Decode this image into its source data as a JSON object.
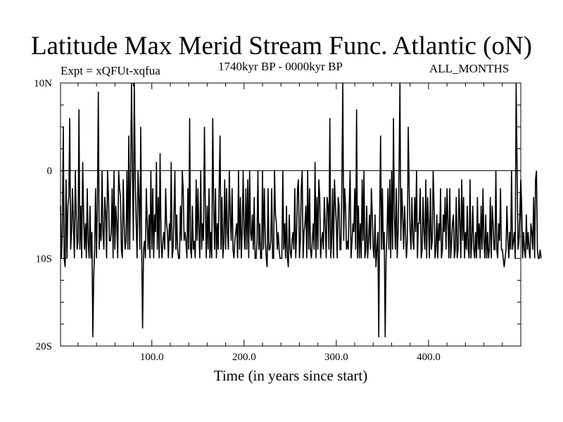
{
  "header": {
    "title": "Latitude Max Merid Stream Func. Atlantic (oN)",
    "expt": "Expt = xQFUt-xqfua",
    "period": "1740kyr BP - 0000kyr BP",
    "months": "ALL_MONTHS"
  },
  "chart_data": {
    "type": "line",
    "title": "Latitude Max Merid Stream Func. Atlantic (oN)",
    "xlabel": "Time (in years since start)",
    "ylabel": "",
    "xlim": [
      1,
      500
    ],
    "ylim": [
      -20,
      10
    ],
    "x_ticks": [
      100,
      200,
      300,
      400
    ],
    "x_tick_labels": [
      "100.0",
      "200.0",
      "300.0",
      "400.0"
    ],
    "y_ticks": [
      -20,
      -10,
      0,
      10
    ],
    "y_tick_labels": [
      "20S",
      "10S",
      "0",
      "10N"
    ],
    "zero_line": true,
    "grid": false,
    "series": [
      {
        "x_start": 1,
        "x_step": 1,
        "values": [
          -4,
          -10,
          -7,
          5,
          -10,
          -11,
          -1,
          -10,
          -4,
          -3,
          6,
          -9,
          -7,
          -2,
          -6,
          -10,
          0,
          -5,
          -9,
          -8,
          7,
          -9,
          -4,
          -10,
          1,
          -5,
          -9,
          -6,
          -10,
          -2,
          -8,
          -10,
          -4,
          -10,
          -7,
          -19,
          -12,
          -9,
          -2,
          -10,
          -4,
          9,
          -9,
          -6,
          -8,
          0,
          -7,
          -9,
          -3,
          -5,
          -10,
          0,
          -3,
          -8,
          -8,
          -7,
          -2,
          -10,
          0,
          -9,
          -4,
          -6,
          -10,
          0,
          -2,
          -3,
          -9,
          -10,
          -1,
          -6,
          -9,
          -8,
          0,
          -9,
          4,
          -9,
          0,
          10,
          0,
          -8,
          10,
          -1,
          -6,
          -10,
          0,
          -3,
          -9,
          5,
          -9,
          -18,
          -9,
          -8,
          -10,
          -2,
          -6,
          -9,
          -5,
          -10,
          0,
          -9,
          -2,
          -10,
          -5,
          -7,
          1,
          -9,
          -3,
          -10,
          2,
          -8,
          -10,
          -8,
          -7,
          -9,
          -2,
          -6,
          -7,
          -10,
          -6,
          -8,
          1,
          -10,
          -9,
          -5,
          0,
          -9,
          -5,
          -9,
          -10,
          -10,
          -4,
          -8,
          0,
          -2,
          -8,
          -7,
          -8,
          -10,
          -2,
          -9,
          6,
          -9,
          -10,
          -4,
          -9,
          -8,
          -10,
          -1,
          -8,
          -2,
          -7,
          -10,
          0,
          -9,
          -6,
          -8,
          5,
          -4,
          -10,
          -4,
          -9,
          -2,
          -10,
          -7,
          -10,
          6,
          -4,
          -9,
          -2,
          -10,
          -6,
          -9,
          -2,
          4,
          -9,
          -3,
          -10,
          -8,
          -1,
          -9,
          -2,
          -7,
          -9,
          0,
          -5,
          -8,
          -2,
          -9,
          -10,
          -8,
          -7,
          -6,
          -10,
          0,
          -9,
          -3,
          -10,
          -7,
          0,
          -7,
          -9,
          -2,
          -9,
          -1,
          -10,
          0,
          -7,
          -8,
          -5,
          -9,
          -3,
          -10,
          -10,
          -8,
          0,
          -9,
          -6,
          -10,
          -10,
          0,
          -9,
          -2,
          -8,
          -10,
          -11,
          -2,
          -9,
          -9,
          -8,
          -2,
          -10,
          -10,
          0,
          -5,
          -6,
          -9,
          -7,
          -9,
          -10,
          -10,
          -10,
          0,
          -9,
          -6,
          -10,
          -4,
          -10,
          -11,
          -5,
          -9,
          -10,
          -8,
          -7,
          -9,
          -2,
          -10,
          -7,
          -2,
          -1,
          -10,
          -8,
          -2,
          0,
          -10,
          -7,
          -6,
          -4,
          -10,
          0,
          -9,
          -2,
          -9,
          -10,
          -8,
          -6,
          -9,
          1,
          -10,
          -3,
          -9,
          -1,
          -3,
          -10,
          -8,
          -7,
          -9,
          -3,
          -6,
          -10,
          -3,
          -4,
          -9,
          6,
          -10,
          -8,
          -2,
          -10,
          -1,
          -4,
          -6,
          -10,
          -3,
          -4,
          -9,
          -9,
          -2,
          10,
          -8,
          -2,
          -4,
          -9,
          -8,
          -9,
          -4,
          0,
          -10,
          -8,
          -6,
          -7,
          -2,
          -9,
          7,
          -10,
          -4,
          -10,
          -6,
          -10,
          -1,
          -8,
          0,
          -10,
          -9,
          -4,
          -10,
          -8,
          -5,
          -9,
          -2,
          -5,
          -9,
          -10,
          -5,
          -11,
          -9,
          -7,
          -19,
          -5,
          4,
          -9,
          -2,
          -9,
          -7,
          -19,
          -10,
          -7,
          -2,
          -9,
          -1,
          -10,
          0,
          -9,
          6,
          -5,
          -9,
          -2,
          -10,
          -7,
          0,
          10,
          -8,
          -2,
          -5,
          -9,
          -4,
          -7,
          -10,
          -8,
          5,
          -2,
          -7,
          -9,
          -3,
          -8,
          -9,
          -3,
          -7,
          0,
          -10,
          -6,
          -6,
          -2,
          -10,
          -9,
          -3,
          -7,
          -9,
          -1,
          -10,
          -3,
          -6,
          -10,
          -2,
          -9,
          -8,
          0,
          -4,
          -10,
          -9,
          -5,
          -10,
          -6,
          -8,
          -2,
          -10,
          -9,
          -5,
          -7,
          -3,
          -9,
          -2,
          -6,
          -10,
          -2,
          -10,
          -8,
          -6,
          -5,
          -10,
          -9,
          -3,
          -10,
          -9,
          -2,
          -6,
          -10,
          -1,
          -8,
          -3,
          -10,
          -7,
          -9,
          -4,
          -9,
          -10,
          -1,
          -10,
          -8,
          -4,
          -9,
          -10,
          -7,
          -10,
          -3,
          -9,
          -6,
          -10,
          -4,
          -9,
          -2,
          -8,
          -10,
          -5,
          -10,
          -7,
          -10,
          -9,
          -3,
          -10,
          -4,
          -6,
          -9,
          -9,
          0,
          -9,
          -10,
          -6,
          -8,
          -2,
          -9,
          -9,
          -10,
          -11,
          -10,
          -9,
          -4,
          -8,
          -10,
          -7,
          -9,
          0,
          -9,
          -8,
          -7,
          -10,
          10,
          0,
          -9,
          -8,
          -5,
          -1,
          -4,
          -10,
          -7,
          -9,
          -10,
          -5,
          -9,
          -7,
          -9,
          -10,
          -6,
          -7,
          -9,
          -3,
          -10,
          -1,
          0,
          -9,
          -10,
          -10,
          -9,
          -10
        ]
      }
    ]
  }
}
